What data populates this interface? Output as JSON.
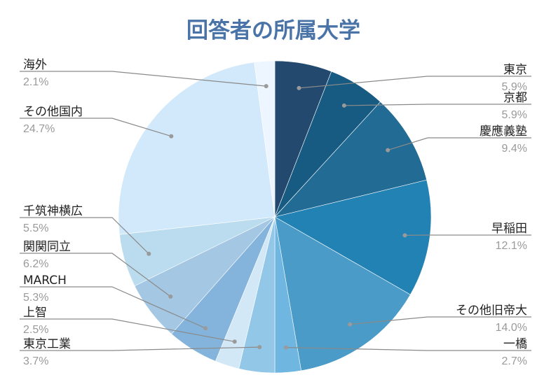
{
  "chart_data": {
    "type": "pie",
    "title": "回答者の所属大学",
    "title_color": "#4a74a8",
    "slices": [
      {
        "label": "東京",
        "value": 5.9,
        "value_text": "5.9%",
        "color": "#234a6e",
        "side": "right"
      },
      {
        "label": "京都",
        "value": 5.9,
        "value_text": "5.9%",
        "color": "#175a82",
        "side": "right"
      },
      {
        "label": "慶應義塾",
        "value": 9.4,
        "value_text": "9.4%",
        "color": "#216b95",
        "side": "right"
      },
      {
        "label": "早稲田",
        "value": 12.1,
        "value_text": "12.1%",
        "color": "#2382b4",
        "side": "right"
      },
      {
        "label": "その他旧帝大",
        "value": 14.0,
        "value_text": "14.0%",
        "color": "#4a9bc8",
        "side": "right"
      },
      {
        "label": "一橋",
        "value": 2.7,
        "value_text": "2.7%",
        "color": "#6fb6e0",
        "side": "right"
      },
      {
        "label": "東京工業",
        "value": 3.7,
        "value_text": "3.7%",
        "color": "#93c7e8",
        "side": "left"
      },
      {
        "label": "上智",
        "value": 2.5,
        "value_text": "2.5%",
        "color": "#d3e8f6",
        "side": "left"
      },
      {
        "label": "MARCH",
        "value": 5.3,
        "value_text": "5.3%",
        "color": "#84b4dc",
        "side": "left"
      },
      {
        "label": "関関同立",
        "value": 6.2,
        "value_text": "6.2%",
        "color": "#a4c7e4",
        "side": "left"
      },
      {
        "label": "千筑神横広",
        "value": 5.5,
        "value_text": "5.5%",
        "color": "#bbdcef",
        "side": "left"
      },
      {
        "label": "その他国内",
        "value": 24.7,
        "value_text": "24.7%",
        "color": "#d1e9fb",
        "side": "left"
      },
      {
        "label": "海外",
        "value": 2.1,
        "value_text": "2.1%",
        "color": "#edf6fe",
        "side": "left"
      }
    ],
    "legend": "none",
    "label_style": "leader-lines"
  }
}
